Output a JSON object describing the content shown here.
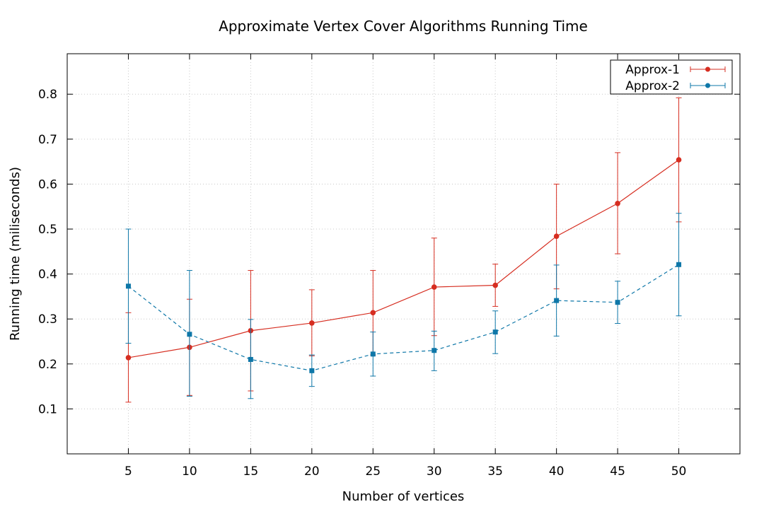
{
  "chart_data": {
    "type": "line",
    "title": "Approximate Vertex Cover Algorithms Running Time",
    "xlabel": "Number of vertices",
    "ylabel": "Running time (miliseconds)",
    "x": [
      5,
      10,
      15,
      20,
      25,
      30,
      35,
      40,
      45,
      50
    ],
    "xlim": [
      0,
      55
    ],
    "ylim": [
      0,
      0.89
    ],
    "yticks": [
      0.1,
      0.2,
      0.3,
      0.4,
      0.5,
      0.6,
      0.7,
      0.8
    ],
    "grid": true,
    "legend_position": "top-right",
    "series": [
      {
        "name": "Approx-1",
        "color": "#d62d20",
        "marker": "circle",
        "line_style": "solid",
        "values": [
          0.214,
          0.237,
          0.274,
          0.291,
          0.314,
          0.371,
          0.375,
          0.484,
          0.557,
          0.654
        ],
        "lower": [
          0.115,
          0.13,
          0.14,
          0.218,
          0.22,
          0.263,
          0.328,
          0.367,
          0.445,
          0.516
        ],
        "upper": [
          0.314,
          0.344,
          0.408,
          0.365,
          0.408,
          0.48,
          0.422,
          0.6,
          0.67,
          0.792
        ]
      },
      {
        "name": "Approx-2",
        "color": "#0e77a8",
        "marker": "square",
        "line_style": "dashed",
        "values": [
          0.373,
          0.266,
          0.21,
          0.185,
          0.222,
          0.23,
          0.271,
          0.341,
          0.337,
          0.421
        ],
        "lower": [
          0.246,
          0.128,
          0.123,
          0.15,
          0.173,
          0.185,
          0.223,
          0.262,
          0.29,
          0.307
        ],
        "upper": [
          0.5,
          0.408,
          0.299,
          0.22,
          0.271,
          0.273,
          0.318,
          0.42,
          0.384,
          0.535
        ]
      }
    ]
  }
}
